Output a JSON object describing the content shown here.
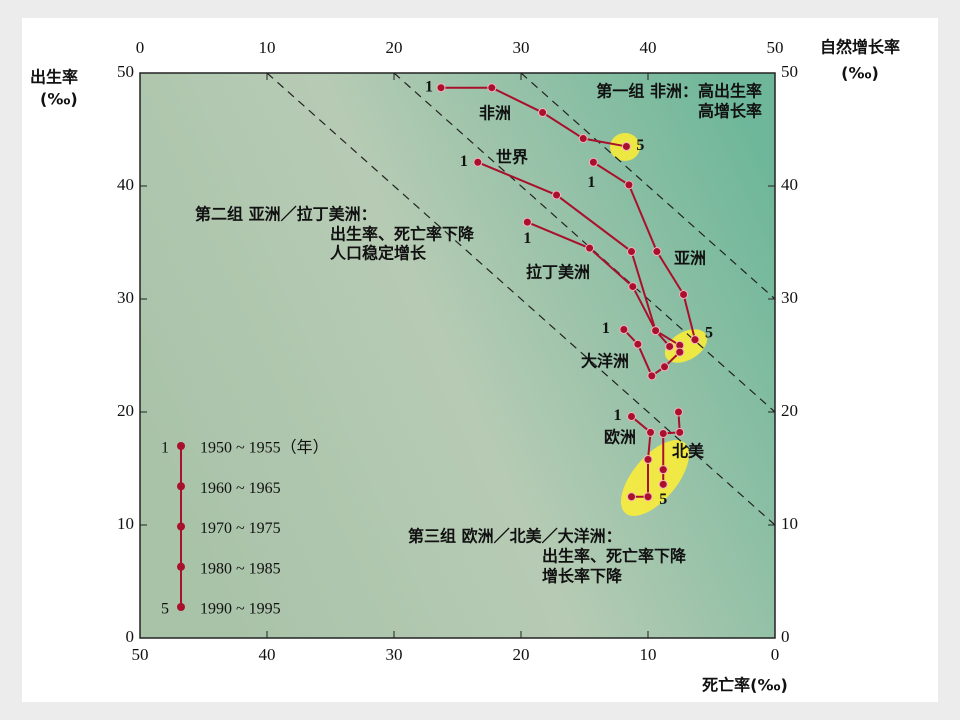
{
  "chart_data": {
    "type": "line",
    "xlabel": "死亡率(‰)",
    "ylabel": [
      "出生率",
      "(‰)"
    ],
    "y2label": [
      "自然增长率",
      "(‰)"
    ],
    "xlim": [
      50,
      0
    ],
    "xticks": [
      50,
      40,
      30,
      20,
      10,
      0
    ],
    "ylim": [
      0,
      50
    ],
    "yticks": [
      0,
      10,
      20,
      30,
      40,
      50
    ],
    "x2lim": [
      0,
      50
    ],
    "x2ticks": [
      0,
      10,
      20,
      30,
      40,
      50
    ],
    "y2lim": [
      0,
      50
    ],
    "y2ticks": [
      0,
      10,
      20,
      30,
      40,
      50
    ],
    "growth_lines": [
      10,
      20,
      30
    ],
    "line_color": "#a8102c",
    "series": [
      {
        "name": "非洲",
        "color": "#a8102c",
        "x": [
          26.3,
          22.3,
          18.3,
          15.1,
          11.7
        ],
        "values": [
          48.7,
          48.7,
          46.5,
          44.2,
          43.5
        ],
        "marker_labels": [
          "1",
          null,
          null,
          null,
          "5"
        ]
      },
      {
        "name": "世界",
        "color": "#a8102c",
        "x": [
          23.4,
          17.2,
          11.3,
          9.4,
          8.3
        ],
        "values": [
          42.1,
          39.2,
          34.2,
          27.2,
          25.8
        ],
        "marker_labels": [
          "1",
          null,
          null,
          null,
          null
        ]
      },
      {
        "name": "亚洲",
        "color": "#a8102c",
        "x": [
          14.3,
          11.5,
          9.3,
          7.2,
          6.3
        ],
        "values": [
          42.1,
          40.1,
          34.2,
          30.4,
          26.4
        ],
        "marker_labels": [
          "1",
          null,
          null,
          null,
          "5"
        ]
      },
      {
        "name": "拉丁美洲",
        "color": "#a8102c",
        "x": [
          19.5,
          14.6,
          11.2,
          9.4,
          7.5
        ],
        "values": [
          36.8,
          34.5,
          31.1,
          27.2,
          25.9
        ],
        "marker_labels": [
          "1",
          null,
          null,
          null,
          null
        ]
      },
      {
        "name": "大洋洲",
        "color": "#a8102c",
        "x": [
          11.9,
          10.8,
          9.7,
          8.7,
          7.5
        ],
        "values": [
          27.3,
          26.0,
          23.2,
          24.0,
          25.3
        ],
        "marker_labels": [
          "1",
          null,
          null,
          null,
          null
        ]
      },
      {
        "name": "欧洲",
        "color": "#a8102c",
        "x": [
          11.3,
          9.8,
          10.0,
          10.0,
          11.3
        ],
        "values": [
          19.6,
          18.2,
          15.8,
          12.5,
          12.5
        ],
        "marker_labels": [
          "1",
          null,
          null,
          null,
          null
        ]
      },
      {
        "name": "北美",
        "color": "#a8102c",
        "x": [
          7.6,
          7.5,
          8.8,
          8.8,
          8.8
        ],
        "values": [
          20.0,
          18.2,
          18.1,
          14.9,
          13.6
        ],
        "marker_labels": [
          null,
          null,
          null,
          null,
          "5"
        ]
      }
    ],
    "groups": [
      {
        "lines": [
          "第一组 非洲：高出生率",
          "高增长率"
        ]
      },
      {
        "lines": [
          "第二组 亚洲／拉丁美洲：",
          "出生率、死亡率下降",
          "人口稳定增长"
        ]
      },
      {
        "lines": [
          "第三组 欧洲／北美／大洋洲：",
          "出生率、死亡率下降",
          "增长率下降"
        ]
      }
    ],
    "legend": {
      "markers": [
        "1",
        null,
        null,
        null,
        "5"
      ],
      "periods": [
        "1950 ~ 1955（年）",
        "1960 ~ 1965",
        "1970 ~ 1975",
        "1980 ~ 1985",
        "1990 ~ 1995"
      ]
    }
  }
}
